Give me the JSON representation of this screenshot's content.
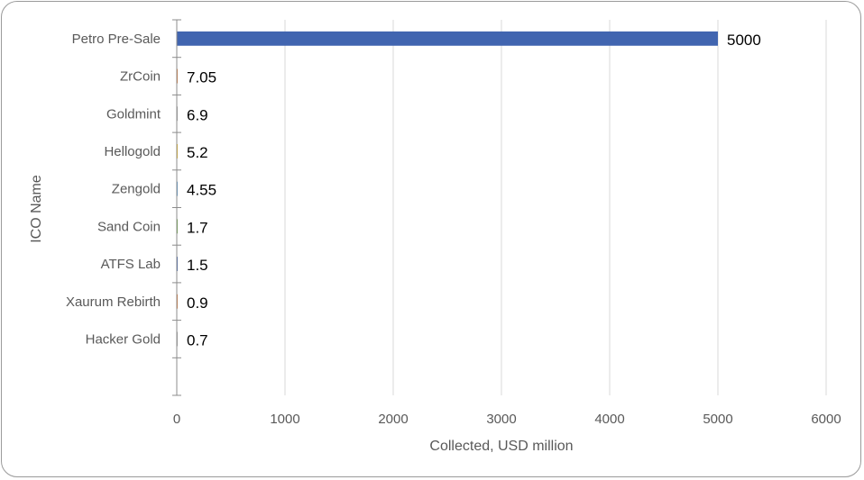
{
  "chart_data": {
    "type": "bar",
    "orientation": "horizontal",
    "categories": [
      "Petro Pre-Sale",
      "ZrCoin",
      "Goldmint",
      "Hellogold",
      "Zengold",
      "Sand Coin",
      "ATFS Lab",
      "Xaurum Rebirth",
      "Hacker Gold"
    ],
    "values": [
      5000,
      7.05,
      6.9,
      5.2,
      4.55,
      1.7,
      1.5,
      0.9,
      0.7
    ],
    "data_labels": [
      "5000",
      "7.05",
      "6.9",
      "5.2",
      "4.55",
      "1.7",
      "1.5",
      "0.9",
      "0.7"
    ],
    "bar_colors": [
      "#4165b0",
      "#e07b39",
      "#a5a5a5",
      "#f2bf1f",
      "#5b9bd5",
      "#70ad47",
      "#4165b0",
      "#e07b39",
      "#a5a5a5"
    ],
    "xlabel": "Collected, USD million",
    "ylabel": "ICO Name",
    "xlim": [
      0,
      6000
    ],
    "x_ticks": [
      "0",
      "1000",
      "2000",
      "3000",
      "4000",
      "5000",
      "6000"
    ],
    "grid": "vertical",
    "legend": "none"
  }
}
